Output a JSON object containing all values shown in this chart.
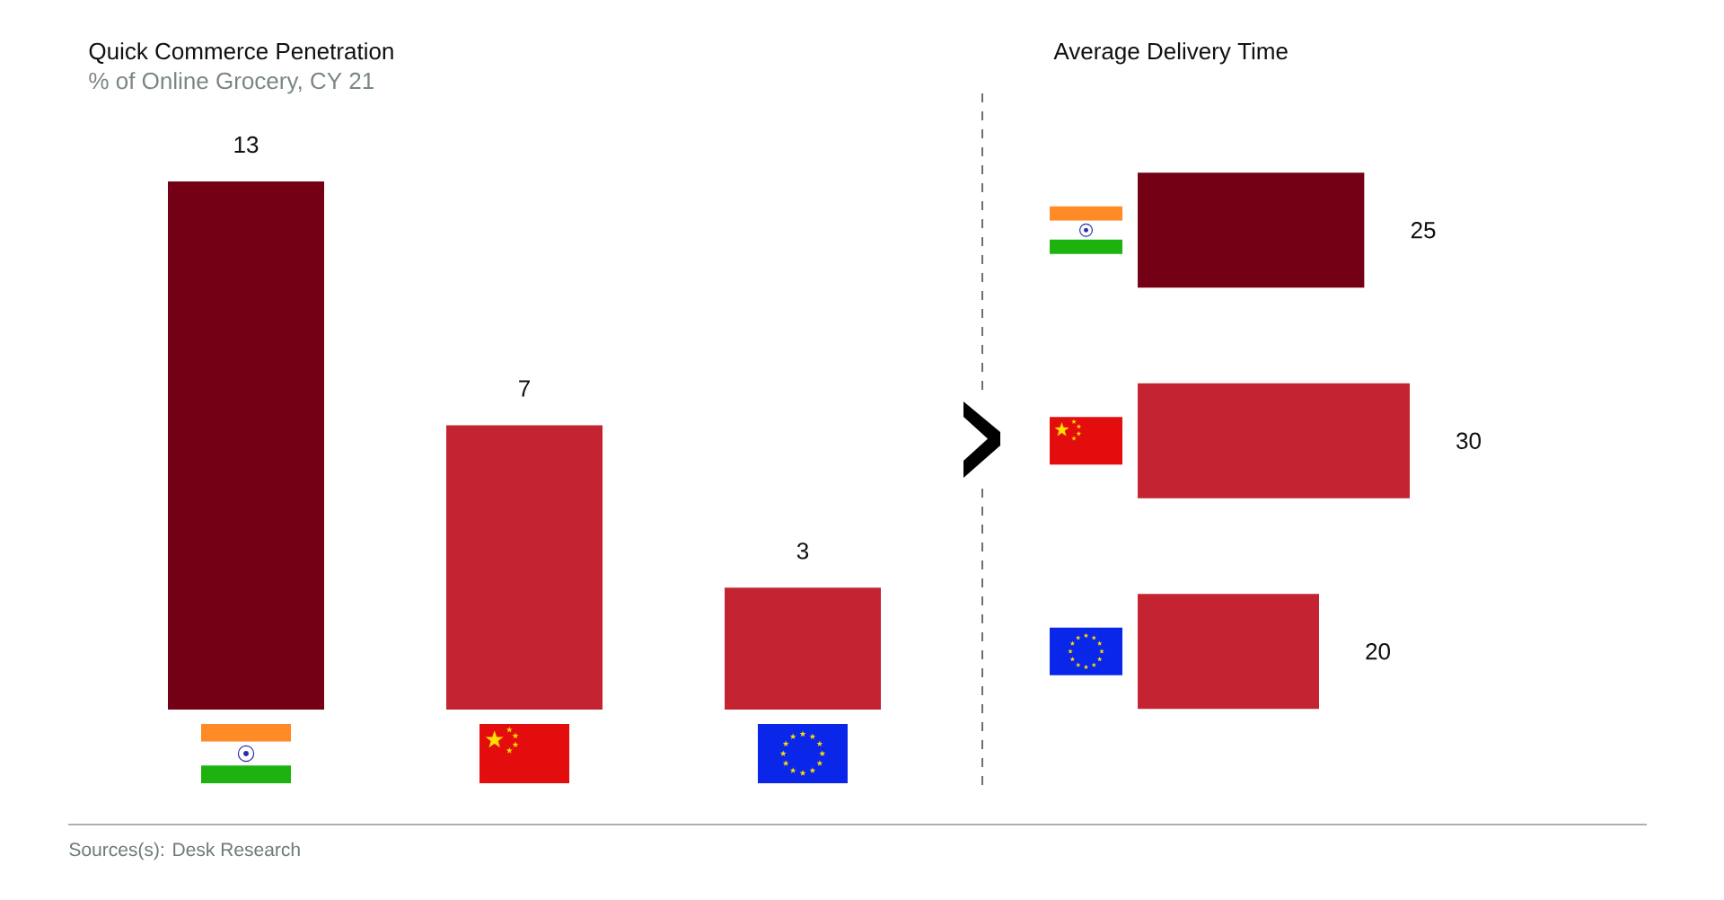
{
  "chart_data": [
    {
      "type": "bar",
      "title": "Quick Commerce Penetration",
      "subtitle": "% of Online Grocery, CY 21",
      "categories": [
        null,
        null,
        null
      ],
      "values": [
        13,
        7,
        3
      ],
      "data_labels": true,
      "colors": [
        "#730014",
        "#c42432",
        "#c42432"
      ],
      "annotations": [
        "Sources(s): Desk Research"
      ]
    },
    {
      "type": "bar",
      "title": "Average Delivery Time",
      "orientation": "horizontal",
      "categories": [
        null,
        null,
        null
      ],
      "values": [
        25,
        30,
        20
      ],
      "data_labels": true,
      "colors": [
        "#730014",
        "#c42432",
        "#c42432"
      ]
    }
  ]
}
